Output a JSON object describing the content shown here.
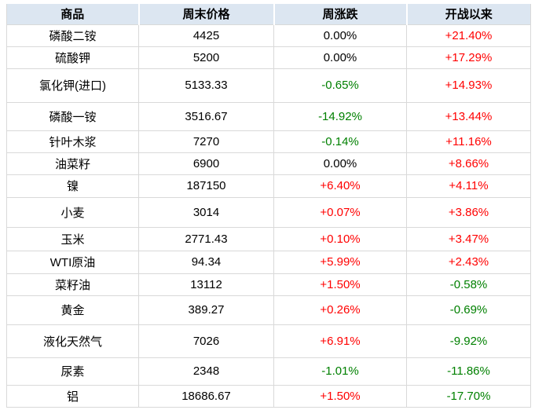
{
  "colors": {
    "positive": "#ff0000",
    "negative": "#008000",
    "neutral": "#000000",
    "header_bg": "#dce6f1",
    "border": "#d9d9d9"
  },
  "chart_data": {
    "type": "table",
    "columns": [
      "商品",
      "周末价格",
      "周涨跌",
      "开战以来"
    ],
    "rows": [
      [
        "磷酸二铵",
        "4425",
        "0.00%",
        "+21.40%"
      ],
      [
        "硫酸钾",
        "5200",
        "0.00%",
        "+17.29%"
      ],
      [
        "氯化钾(进口)",
        "5133.33",
        "-0.65%",
        "+14.93%"
      ],
      [
        "磷酸一铵",
        "3516.67",
        "-14.92%",
        "+13.44%"
      ],
      [
        "针叶木浆",
        "7270",
        "-0.14%",
        "+11.16%"
      ],
      [
        "油菜籽",
        "6900",
        "0.00%",
        "+8.66%"
      ],
      [
        "镍",
        "187150",
        "+6.40%",
        "+4.11%"
      ],
      [
        "小麦",
        "3014",
        "+0.07%",
        "+3.86%"
      ],
      [
        "玉米",
        "2771.43",
        "+0.10%",
        "+3.47%"
      ],
      [
        "WTI原油",
        "94.34",
        "+5.99%",
        "+2.43%"
      ],
      [
        "菜籽油",
        "13112",
        "+1.50%",
        "-0.58%"
      ],
      [
        "黄金",
        "389.27",
        "+0.26%",
        "-0.69%"
      ],
      [
        "液化天然气",
        "7026",
        "+6.91%",
        "-9.92%"
      ],
      [
        "尿素",
        "2348",
        "-1.01%",
        "-11.86%"
      ],
      [
        "铝",
        "18686.67",
        "+1.50%",
        "-17.70%"
      ]
    ]
  }
}
